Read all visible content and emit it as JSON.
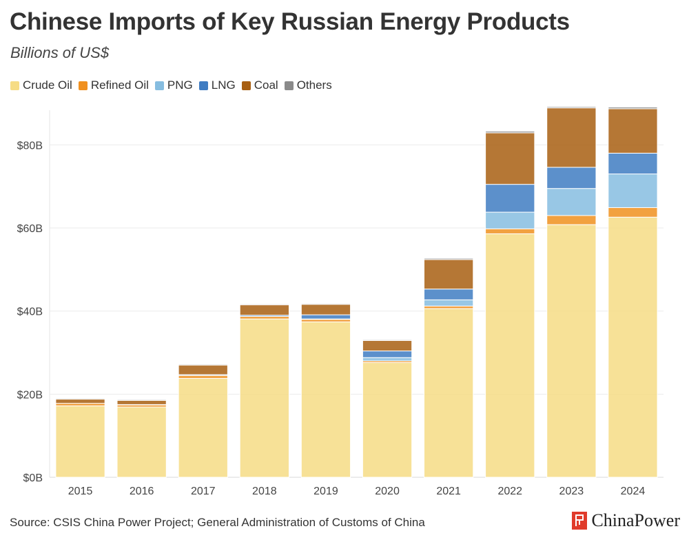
{
  "title": "Chinese Imports of Key Russian Energy Products",
  "subtitle": "Billions of US$",
  "source": "Source: CSIS China Power Project; General Administration of Customs of China",
  "brand": "ChinaPower",
  "legend": [
    {
      "name": "Crude Oil",
      "color": "#f6dc85"
    },
    {
      "name": "Refined Oil",
      "color": "#f0901f"
    },
    {
      "name": "PNG",
      "color": "#86bde0"
    },
    {
      "name": "LNG",
      "color": "#3f7cc2"
    },
    {
      "name": "Coal",
      "color": "#a85f12"
    },
    {
      "name": "Others",
      "color": "#8a8a8a"
    }
  ],
  "chart_data": {
    "type": "bar",
    "stacked": true,
    "categories": [
      "2015",
      "2016",
      "2017",
      "2018",
      "2019",
      "2020",
      "2021",
      "2022",
      "2023",
      "2024"
    ],
    "ylim": [
      0,
      90
    ],
    "yticks": [
      0,
      20,
      40,
      60,
      80
    ],
    "ytick_labels": [
      "$0B",
      "$20B",
      "$40B",
      "$60B",
      "$80B"
    ],
    "grid": true,
    "legend_position": "top-left",
    "series": [
      {
        "name": "Crude Oil",
        "color": "#f6dc85",
        "values": [
          17.2,
          16.9,
          23.8,
          38.1,
          37.4,
          27.6,
          40.6,
          58.6,
          60.8,
          62.6
        ]
      },
      {
        "name": "Refined Oil",
        "color": "#f0901f",
        "values": [
          0.6,
          0.5,
          0.7,
          0.6,
          0.6,
          0.4,
          0.6,
          1.2,
          2.2,
          2.3
        ]
      },
      {
        "name": "PNG",
        "color": "#86bde0",
        "values": [
          0.0,
          0.0,
          0.0,
          0.0,
          0.1,
          0.8,
          1.5,
          4.0,
          6.5,
          8.1
        ]
      },
      {
        "name": "LNG",
        "color": "#3f7cc2",
        "values": [
          0.0,
          0.1,
          0.2,
          0.3,
          1.0,
          1.6,
          2.6,
          6.7,
          5.1,
          5.0
        ]
      },
      {
        "name": "Coal",
        "color": "#a85f12",
        "values": [
          1.0,
          1.0,
          2.3,
          2.5,
          2.5,
          2.5,
          7.1,
          12.4,
          14.3,
          10.7
        ]
      },
      {
        "name": "Others",
        "color": "#8a8a8a",
        "values": [
          0.2,
          0.2,
          0.2,
          0.2,
          0.2,
          0.2,
          0.3,
          0.4,
          0.3,
          0.4
        ]
      }
    ]
  }
}
